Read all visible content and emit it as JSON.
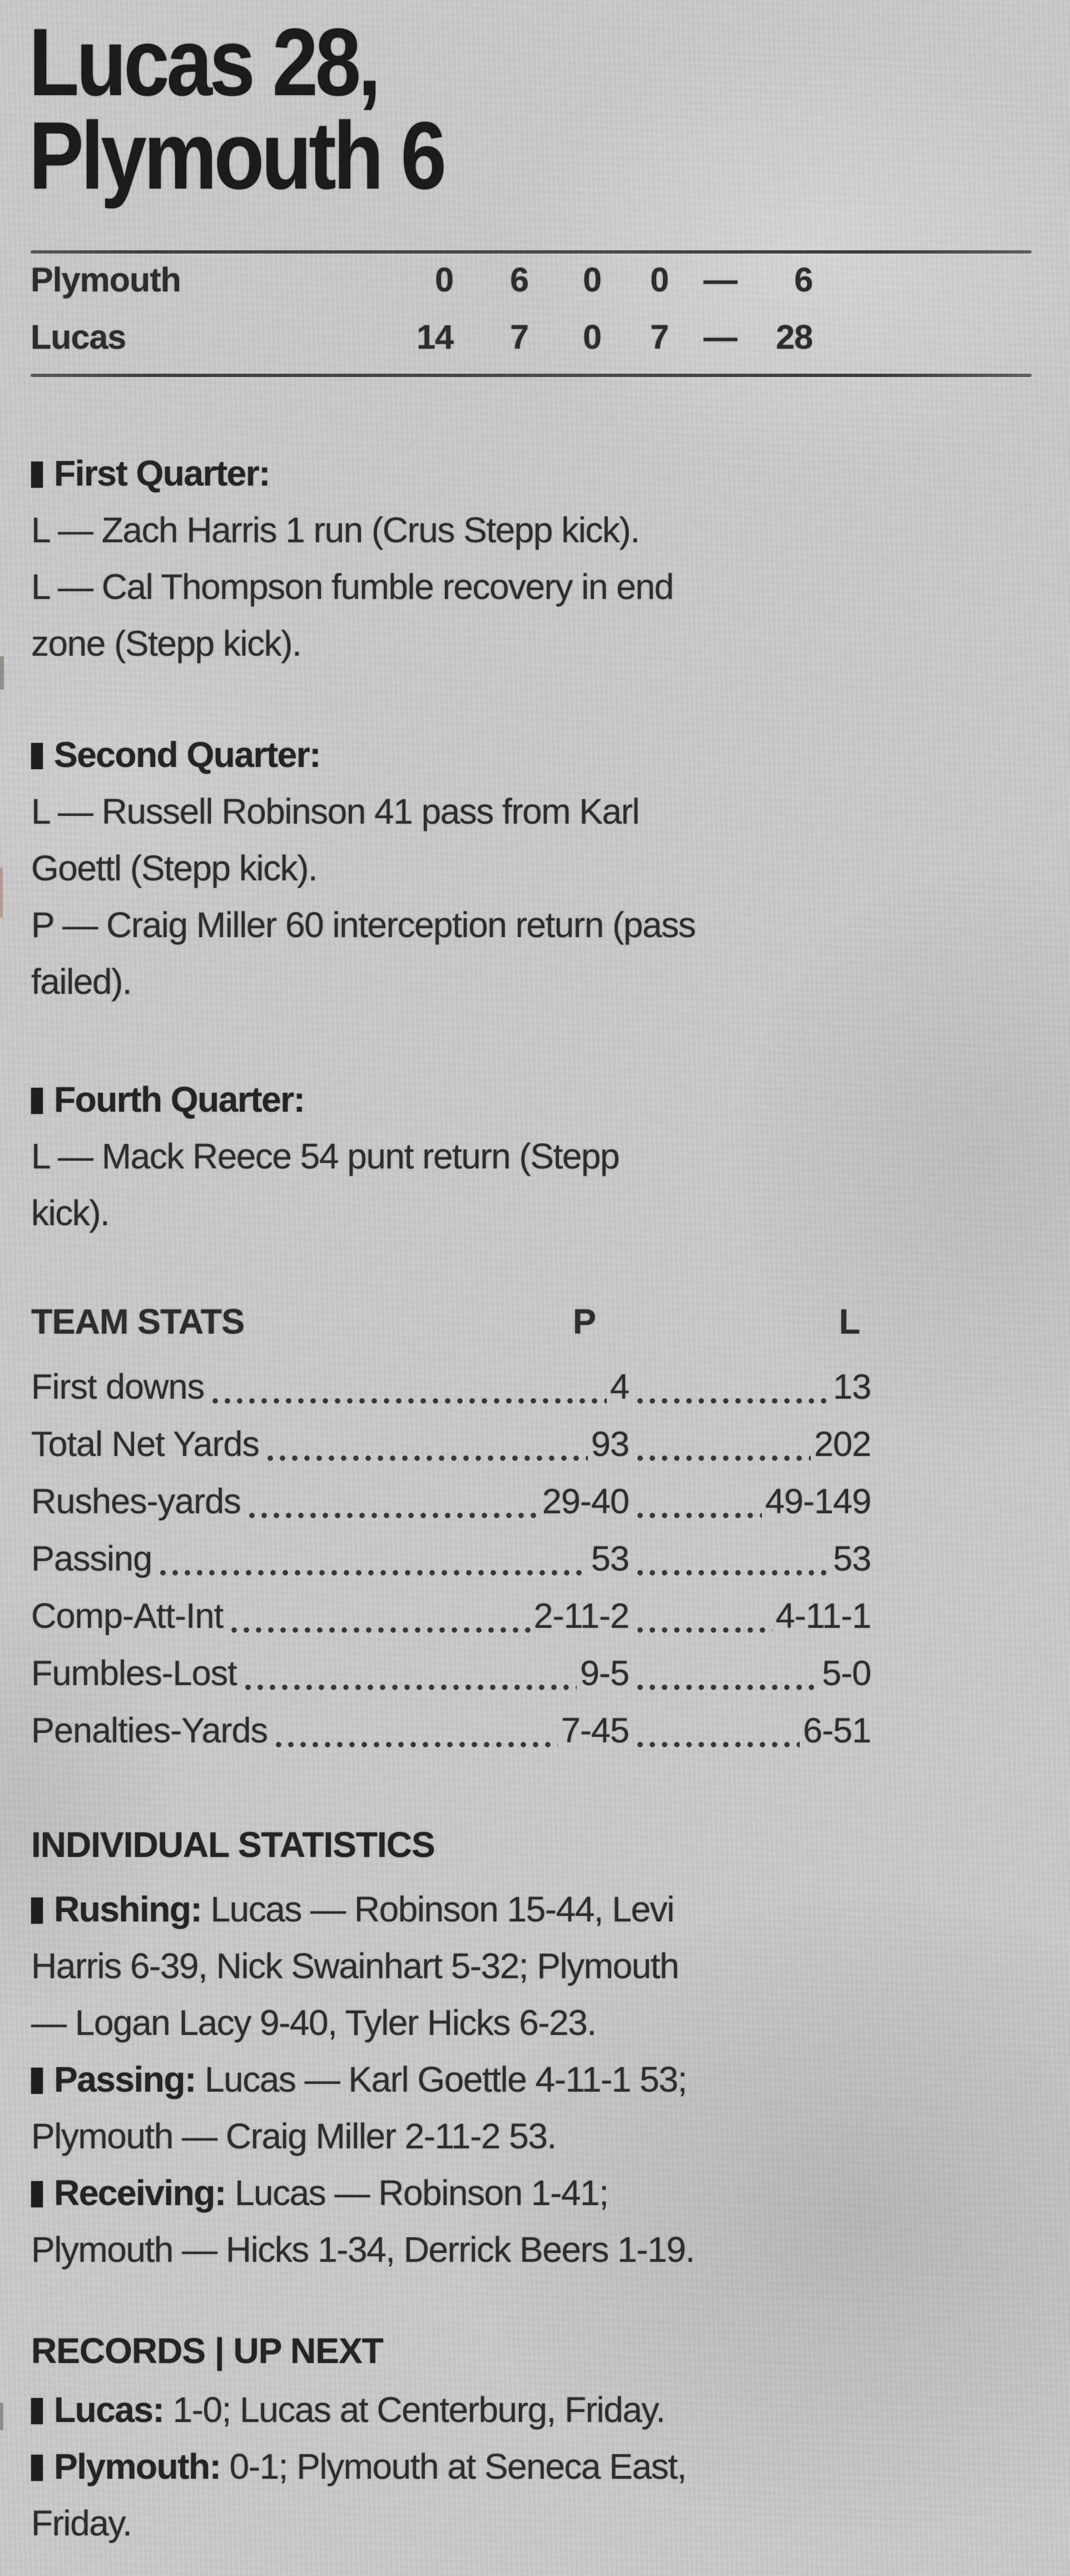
{
  "theme": {
    "paper_color": "#c9c9c9",
    "ink_color": "#2d2d2d",
    "headline_ink": "#1b1b1b"
  },
  "headline": {
    "line1": "Lucas 28,",
    "line2": "Plymouth 6"
  },
  "linescore": {
    "rows": [
      {
        "team": "Plymouth",
        "q1": "0",
        "q2": "6",
        "q3": "0",
        "q4": "0",
        "dash": "—",
        "total": "6"
      },
      {
        "team": "Lucas",
        "q1": "14",
        "q2": "7",
        "q3": "0",
        "q4": "7",
        "dash": "—",
        "total": "28"
      }
    ]
  },
  "quarters": [
    {
      "heading": "First Quarter:",
      "lines": [
        "L — Zach Harris 1 run (Crus Stepp kick).",
        "L — Cal Thompson fumble recovery in end",
        "zone (Stepp kick)."
      ]
    },
    {
      "heading": "Second Quarter:",
      "lines": [
        "L — Russell Robinson 41 pass from Karl",
        "Goettl (Stepp kick).",
        "P — Craig Miller 60 interception return (pass",
        "failed)."
      ]
    },
    {
      "heading": "Fourth Quarter:",
      "lines": [
        "L — Mack Reece 54 punt return (Stepp",
        "kick)."
      ]
    }
  ],
  "team_stats": {
    "title": "TEAM STATS",
    "col_p": "P",
    "col_l": "L",
    "rows": [
      {
        "label": "First downs",
        "p": "4",
        "l": "13"
      },
      {
        "label": "Total Net Yards",
        "p": "93",
        "l": "202"
      },
      {
        "label": "Rushes-yards",
        "p": "29-40",
        "l": "49-149"
      },
      {
        "label": "Passing",
        "p": "53",
        "l": "53"
      },
      {
        "label": "Comp-Att-Int",
        "p": "2-11-2",
        "l": "4-11-1"
      },
      {
        "label": "Fumbles-Lost",
        "p": "9-5",
        "l": "5-0"
      },
      {
        "label": "Penalties-Yards",
        "p": "7-45",
        "l": "6-51"
      }
    ]
  },
  "individual": {
    "title": "INDIVIDUAL STATISTICS",
    "entries": [
      {
        "label": "Rushing:",
        "first_line_rest": " Lucas — Robinson 15-44, Levi",
        "cont_lines": [
          "Harris 6-39, Nick Swainhart 5-32; Plymouth",
          "— Logan Lacy 9-40, Tyler Hicks 6-23."
        ]
      },
      {
        "label": "Passing:",
        "first_line_rest": " Lucas — Karl Goettle 4-11-1 53;",
        "cont_lines": [
          "Plymouth — Craig Miller 2-11-2 53."
        ]
      },
      {
        "label": "Receiving:",
        "first_line_rest": " Lucas — Robinson 1-41;",
        "cont_lines": [
          "Plymouth — Hicks 1-34, Derrick Beers 1-19."
        ]
      }
    ]
  },
  "records": {
    "title": "RECORDS | UP NEXT",
    "entries": [
      {
        "label": "Lucas:",
        "first_line_rest": " 1-0; Lucas at Centerburg, Friday.",
        "cont_lines": []
      },
      {
        "label": "Plymouth:",
        "first_line_rest": " 0-1; Plymouth at Seneca East,",
        "cont_lines": [
          "Friday."
        ]
      }
    ]
  }
}
